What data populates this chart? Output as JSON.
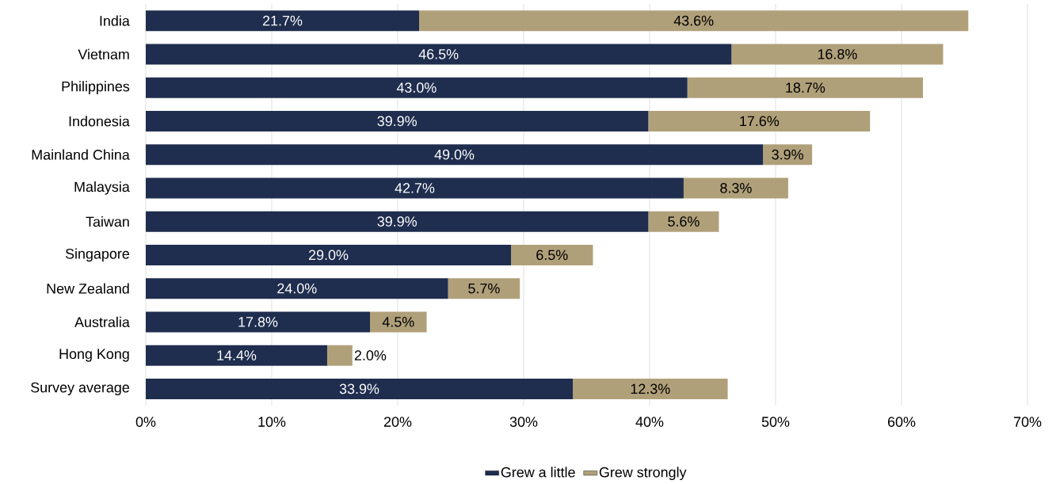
{
  "chart_data": {
    "type": "bar",
    "orientation": "horizontal",
    "stacked": true,
    "categories": [
      "India",
      "Vietnam",
      "Philippines",
      "Indonesia",
      "Mainland China",
      "Malaysia",
      "Taiwan",
      "Singapore",
      "New Zealand",
      "Australia",
      "Hong Kong",
      "Survey average"
    ],
    "series": [
      {
        "name": "Grew a little",
        "color": "#1f2d4e",
        "values": [
          21.7,
          46.5,
          43.0,
          39.9,
          49.0,
          42.7,
          39.9,
          29.0,
          24.0,
          17.8,
          14.4,
          33.9
        ],
        "value_labels": [
          "21.7%",
          "46.5%",
          "43.0%",
          "39.9%",
          "49.0%",
          "42.7%",
          "39.9%",
          "29.0%",
          "24.0%",
          "17.8%",
          "14.4%",
          "33.9%"
        ]
      },
      {
        "name": "Grew strongly",
        "color": "#b0a07a",
        "values": [
          43.6,
          16.8,
          18.7,
          17.6,
          3.9,
          8.3,
          5.6,
          6.5,
          5.7,
          4.5,
          2.0,
          12.3
        ],
        "value_labels": [
          "43.6%",
          "16.8%",
          "18.7%",
          "17.6%",
          "3.9%",
          "8.3%",
          "5.6%",
          "6.5%",
          "5.7%",
          "4.5%",
          "2.0%",
          "12.3%"
        ]
      }
    ],
    "xlim": [
      0,
      70
    ],
    "xticks": [
      {
        "value": 0,
        "label": "0%"
      },
      {
        "value": 10,
        "label": "10%"
      },
      {
        "value": 20,
        "label": "20%"
      },
      {
        "value": 30,
        "label": "30%"
      },
      {
        "value": 40,
        "label": "40%"
      },
      {
        "value": 50,
        "label": "50%"
      },
      {
        "value": 60,
        "label": "60%"
      },
      {
        "value": 70,
        "label": "70%"
      }
    ],
    "grid": "x",
    "legend": "bottom"
  }
}
